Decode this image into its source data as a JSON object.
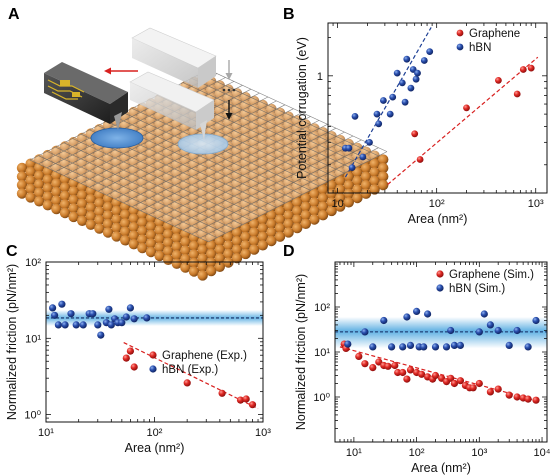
{
  "panels": {
    "a": "A",
    "b": "B",
    "c": "C",
    "d": "D"
  },
  "colors": {
    "graphene": "#d8201f",
    "hbn": "#1d3f94",
    "band": "#4fa8e0",
    "sphere": "#c97a2a"
  },
  "chart_data": [
    {
      "panel": "B",
      "type": "scatter",
      "xscale": "log",
      "yscale": "log",
      "xlabel": "Area (nm²)",
      "ylabel": "Potential corrugation (eV)",
      "xlim": [
        8,
        1300
      ],
      "ylim": [
        0.12,
        2.6
      ],
      "xticks": [
        {
          "v": 10,
          "label": "10"
        },
        {
          "v": 100,
          "label": "10²"
        },
        {
          "v": 1000,
          "label": "10³"
        }
      ],
      "yticks": [
        {
          "v": 1,
          "label": "1"
        }
      ],
      "legend_position": "top-right",
      "series": [
        {
          "name": "Graphene",
          "color": "#d8201f",
          "points": [
            [
              60,
              0.35
            ],
            [
              68,
              0.22
            ],
            [
              200,
              0.56
            ],
            [
              420,
              0.92
            ],
            [
              650,
              0.72
            ],
            [
              750,
              1.12
            ],
            [
              900,
              1.15
            ]
          ],
          "fit": [
            [
              32,
              0.14
            ],
            [
              1050,
              1.4
            ]
          ]
        },
        {
          "name": "hBN",
          "color": "#1d3f94",
          "points": [
            [
              12,
              0.27
            ],
            [
              13,
              0.27
            ],
            [
              14,
              0.19
            ],
            [
              15,
              0.48
            ],
            [
              18,
              0.23
            ],
            [
              21,
              0.3
            ],
            [
              25,
              0.5
            ],
            [
              26,
              0.42
            ],
            [
              29,
              0.64
            ],
            [
              34,
              0.5
            ],
            [
              36,
              0.68
            ],
            [
              40,
              1.05
            ],
            [
              45,
              0.88
            ],
            [
              48,
              0.62
            ],
            [
              50,
              1.35
            ],
            [
              55,
              0.8
            ],
            [
              58,
              1.12
            ],
            [
              62,
              0.94
            ],
            [
              64,
              1.05
            ],
            [
              75,
              1.32
            ],
            [
              85,
              1.55
            ]
          ],
          "fit": [
            [
              12,
              0.16
            ],
            [
              88,
              2.4
            ]
          ]
        }
      ]
    },
    {
      "panel": "C",
      "type": "scatter",
      "xscale": "log",
      "yscale": "log",
      "xlabel": "Area (nm²)",
      "ylabel": "Normalized friction (pN/nm²)",
      "xlim": [
        10,
        1000
      ],
      "ylim": [
        0.8,
        100
      ],
      "xticks": [
        {
          "v": 10,
          "label": "10¹"
        },
        {
          "v": 100,
          "label": "10²"
        },
        {
          "v": 1000,
          "label": "10³"
        }
      ],
      "yticks": [
        {
          "v": 1,
          "label": "10⁰"
        },
        {
          "v": 10,
          "label": "10¹"
        },
        {
          "v": 100,
          "label": "10²"
        }
      ],
      "legend_position": "right",
      "hbn_band": {
        "center": 18.5,
        "low": 14.5,
        "high": 23.5
      },
      "series": [
        {
          "name": "Graphene (Exp.)",
          "color": "#d8201f",
          "points": [
            [
              55,
              5.5
            ],
            [
              60,
              6.8
            ],
            [
              65,
              4.2
            ],
            [
              200,
              2.6
            ],
            [
              420,
              1.9
            ],
            [
              620,
              1.55
            ],
            [
              700,
              1.6
            ],
            [
              800,
              1.35
            ]
          ],
          "fit": [
            [
              52,
              8.8
            ],
            [
              900,
              1.2
            ]
          ]
        },
        {
          "name": "hBN (Exp.)",
          "color": "#1d3f94",
          "points": [
            [
              11.5,
              25
            ],
            [
              12,
              20
            ],
            [
              13,
              15
            ],
            [
              14,
              28
            ],
            [
              15,
              15
            ],
            [
              17,
              21
            ],
            [
              19,
              15
            ],
            [
              22,
              15
            ],
            [
              25,
              21
            ],
            [
              27,
              21
            ],
            [
              30,
              15
            ],
            [
              32,
              11
            ],
            [
              36,
              16
            ],
            [
              38,
              24
            ],
            [
              40,
              15
            ],
            [
              43,
              18
            ],
            [
              46,
              16
            ],
            [
              50,
              16
            ],
            [
              55,
              19
            ],
            [
              60,
              25
            ],
            [
              65,
              18
            ],
            [
              85,
              18.5
            ]
          ]
        }
      ]
    },
    {
      "panel": "D",
      "type": "scatter",
      "xscale": "log",
      "yscale": "log",
      "xlabel": "Area (nm²)",
      "ylabel": "Normalized friction (pN/nm²)",
      "xlim": [
        5,
        12000
      ],
      "ylim": [
        0.1,
        1000
      ],
      "xticks": [
        {
          "v": 10,
          "label": "10¹"
        },
        {
          "v": 100,
          "label": "10²"
        },
        {
          "v": 1000,
          "label": "10³"
        },
        {
          "v": 10000,
          "label": "10⁴"
        }
      ],
      "yticks": [
        {
          "v": 1,
          "label": "10⁰"
        },
        {
          "v": 10,
          "label": "10¹"
        },
        {
          "v": 100,
          "label": "10²"
        }
      ],
      "legend_position": "top-right",
      "hbn_band": {
        "center": 28,
        "low": 12,
        "high": 60
      },
      "series": [
        {
          "name": "Graphene (Sim.)",
          "color": "#d8201f",
          "points": [
            [
              7,
              15
            ],
            [
              7.5,
              12
            ],
            [
              12,
              8
            ],
            [
              15,
              5.5
            ],
            [
              20,
              4.5
            ],
            [
              25,
              6
            ],
            [
              30,
              5
            ],
            [
              35,
              4.8
            ],
            [
              45,
              5
            ],
            [
              50,
              3.5
            ],
            [
              60,
              3.5
            ],
            [
              70,
              2.5
            ],
            [
              80,
              4
            ],
            [
              100,
              3.5
            ],
            [
              120,
              3.2
            ],
            [
              150,
              2.8
            ],
            [
              180,
              2.5
            ],
            [
              200,
              3
            ],
            [
              250,
              2.6
            ],
            [
              300,
              2.2
            ],
            [
              350,
              2.6
            ],
            [
              400,
              2
            ],
            [
              500,
              2.3
            ],
            [
              600,
              1.8
            ],
            [
              700,
              1.6
            ],
            [
              800,
              1.6
            ],
            [
              1000,
              2
            ],
            [
              1500,
              1.3
            ],
            [
              2000,
              1.5
            ],
            [
              3000,
              1.1
            ],
            [
              4000,
              1
            ],
            [
              5000,
              0.95
            ],
            [
              6000,
              0.9
            ],
            [
              8000,
              0.85
            ]
          ],
          "fit": [
            [
              6,
              13
            ],
            [
              9000,
              0.8
            ]
          ]
        },
        {
          "name": "hBN (Sim.)",
          "color": "#1d3f94",
          "points": [
            [
              8,
              15
            ],
            [
              15,
              28
            ],
            [
              20,
              13
            ],
            [
              30,
              50
            ],
            [
              40,
              13
            ],
            [
              60,
              13
            ],
            [
              70,
              60
            ],
            [
              80,
              14
            ],
            [
              100,
              80
            ],
            [
              110,
              13
            ],
            [
              130,
              13
            ],
            [
              150,
              70
            ],
            [
              200,
              13
            ],
            [
              300,
              13
            ],
            [
              350,
              30
            ],
            [
              400,
              14
            ],
            [
              500,
              14
            ],
            [
              1000,
              28
            ],
            [
              1200,
              70
            ],
            [
              1500,
              40
            ],
            [
              2000,
              30
            ],
            [
              3000,
              14
            ],
            [
              4000,
              30
            ],
            [
              6000,
              13
            ],
            [
              8000,
              50
            ]
          ]
        }
      ]
    }
  ]
}
